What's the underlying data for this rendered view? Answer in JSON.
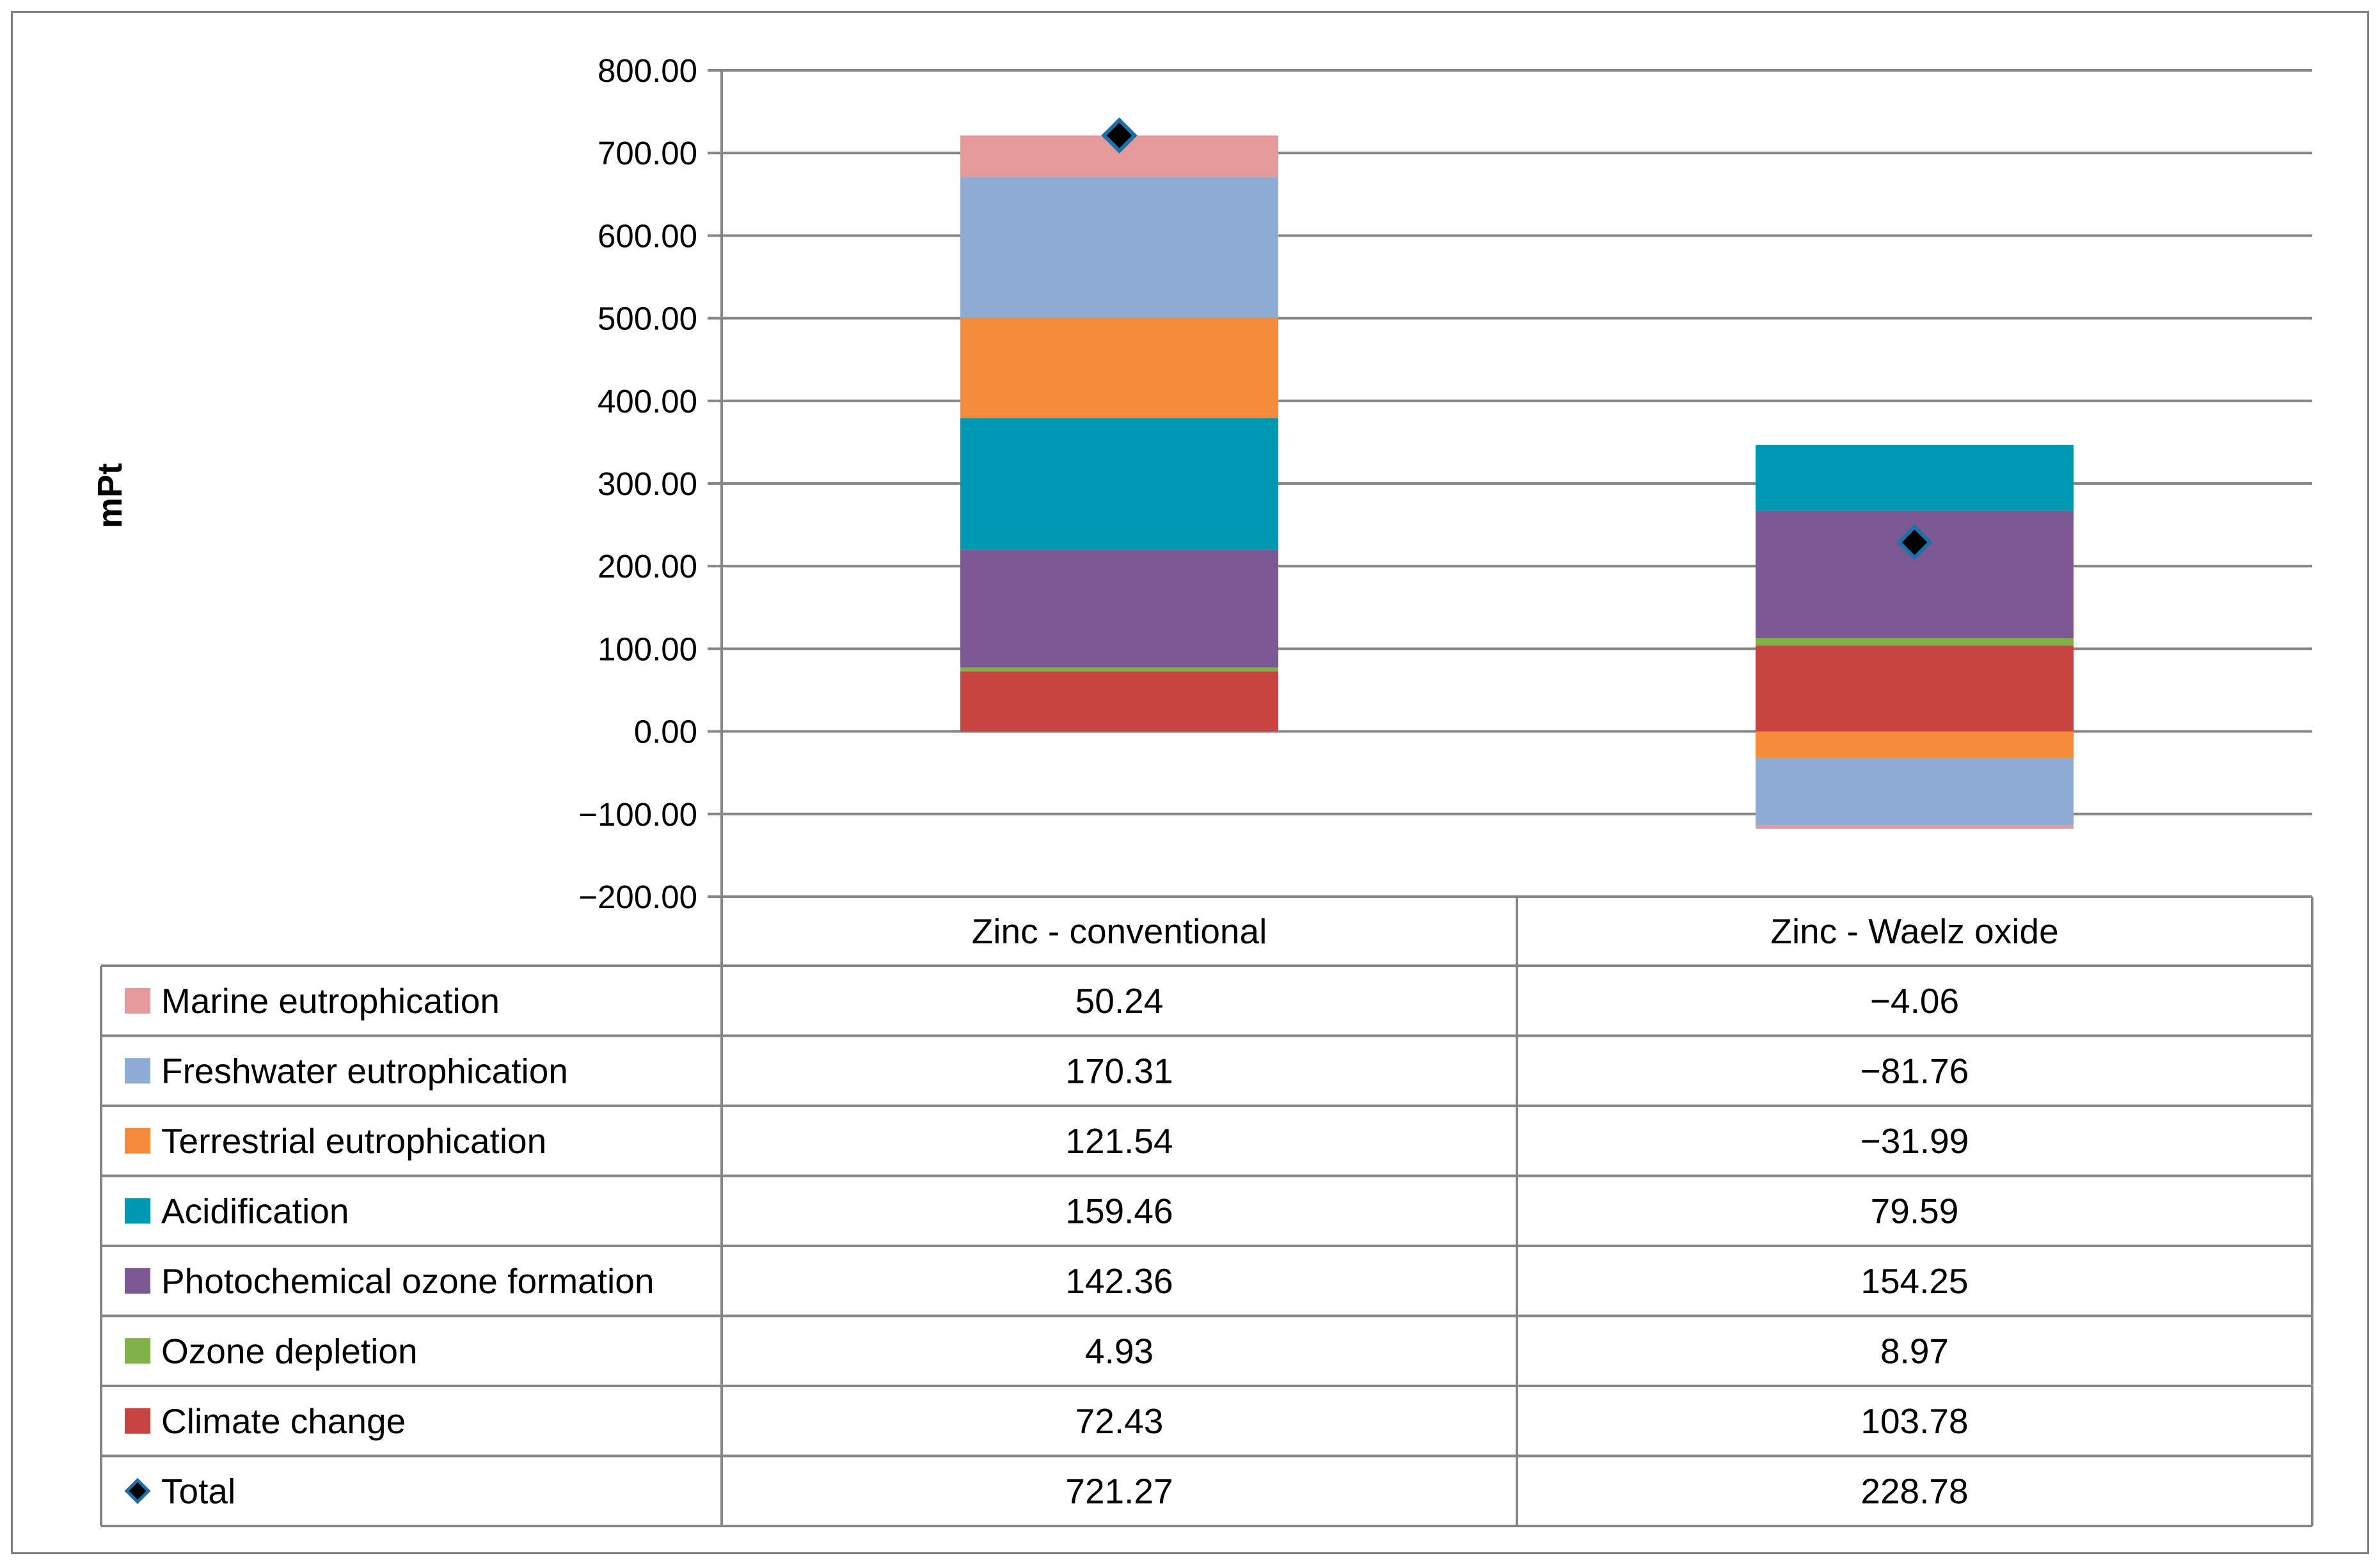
{
  "chart_data": {
    "type": "bar",
    "stacked": true,
    "title": "",
    "xlabel": "",
    "ylabel": "mPt",
    "ylim": [
      -200,
      800
    ],
    "ytick_step": 100,
    "y_ticks": [
      "800.00",
      "700.00",
      "600.00",
      "500.00",
      "400.00",
      "300.00",
      "200.00",
      "100.00",
      "0.00",
      "−100.00",
      "−200.00"
    ],
    "categories": [
      "Zinc - conventional",
      "Zinc - Waelz oxide"
    ],
    "series": [
      {
        "name": "Marine eutrophication",
        "color": "#E6999A",
        "values": [
          50.24,
          -4.06
        ],
        "labels": [
          "50.24",
          "−4.06"
        ]
      },
      {
        "name": "Freshwater eutrophication",
        "color": "#8FADD4",
        "values": [
          170.31,
          -81.76
        ],
        "labels": [
          "170.31",
          "−81.76"
        ]
      },
      {
        "name": "Terrestrial eutrophication",
        "color": "#F38B3A",
        "values": [
          121.54,
          -31.99
        ],
        "labels": [
          "121.54",
          "−31.99"
        ]
      },
      {
        "name": "Acidification",
        "color": "#0099B3",
        "values": [
          159.46,
          79.59
        ],
        "labels": [
          "159.46",
          "79.59"
        ]
      },
      {
        "name": "Photochemical ozone formation",
        "color": "#7B5892",
        "values": [
          142.36,
          154.25
        ],
        "labels": [
          "142.36",
          "154.25"
        ]
      },
      {
        "name": "Ozone depletion",
        "color": "#7FB148",
        "values": [
          4.93,
          8.97
        ],
        "labels": [
          "4.93",
          "8.97"
        ]
      },
      {
        "name": "Climate change",
        "color": "#C74442",
        "values": [
          72.43,
          103.78
        ],
        "labels": [
          "72.43",
          "103.78"
        ]
      }
    ],
    "total": {
      "name": "Total",
      "marker": "diamond",
      "color": "#000000",
      "edge_color": "#1F6FA8",
      "values": [
        721.27,
        228.78
      ],
      "labels": [
        "721.27",
        "228.78"
      ]
    },
    "legend": "data-table-below",
    "grid": true
  }
}
